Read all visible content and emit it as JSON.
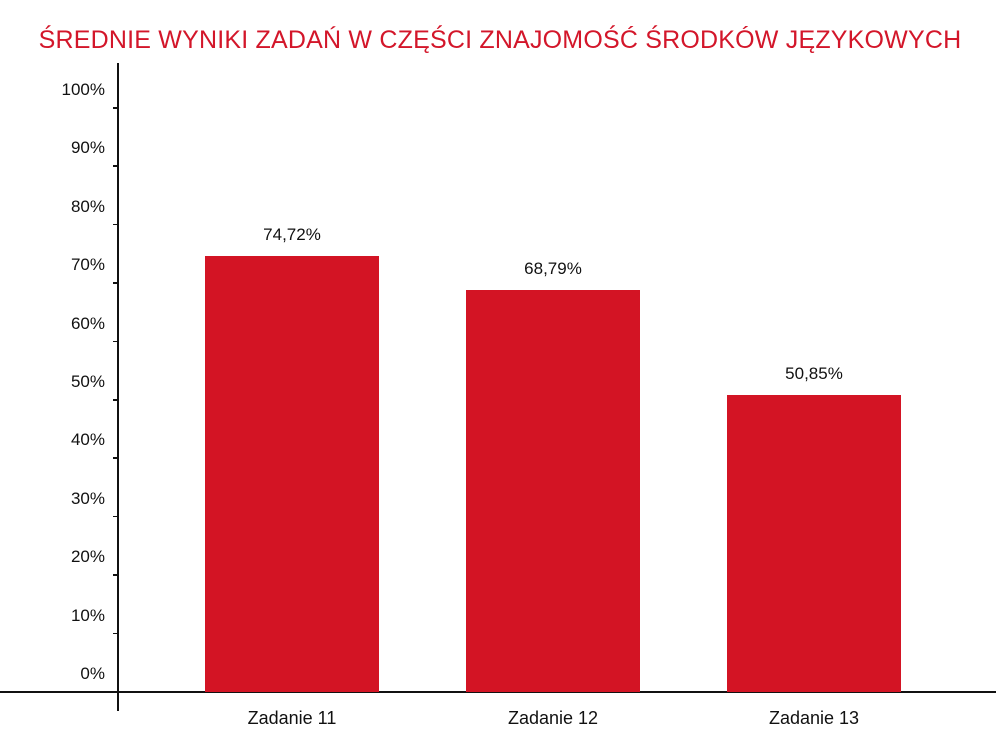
{
  "chart_data": {
    "type": "bar",
    "title": "ŚREDNIE WYNIKI ZADAŃ W CZĘŚCI ZNAJOMOŚĆ ŚRODKÓW JĘZYKOWYCH",
    "xlabel": "",
    "ylabel": "",
    "categories": [
      "Zadanie 11",
      "Zadanie 12",
      "Zadanie 13"
    ],
    "values": [
      74.72,
      68.79,
      50.85
    ],
    "value_labels": [
      "74,72%",
      "68,79%",
      "50,85%"
    ],
    "ylim": [
      0,
      100
    ],
    "yticks": [
      "0%",
      "10%",
      "20%",
      "30%",
      "40%",
      "50%",
      "60%",
      "70%",
      "80%",
      "90%",
      "100%"
    ],
    "grid": false,
    "legend": null,
    "bar_color": "#d31424",
    "title_color": "#d3162a"
  }
}
